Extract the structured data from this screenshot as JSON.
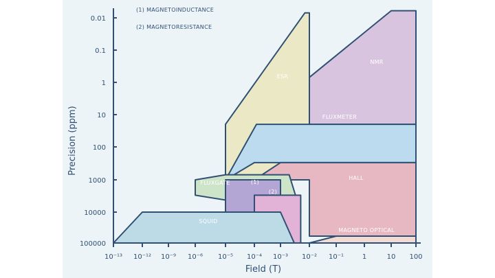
{
  "chart_data": {
    "type": "area",
    "title": "",
    "xlabel": "Field (T)",
    "ylabel": "Precision (ppm)",
    "x_scale": "log",
    "y_scale": "log-inverted",
    "x_ticks": [
      "10⁻¹³",
      "10⁻¹²",
      "10⁻⁹",
      "10⁻⁶",
      "10⁻⁵",
      "10⁻⁴",
      "10⁻³",
      "10⁻²",
      "10⁻¹",
      "1",
      "10",
      "100"
    ],
    "y_ticks": [
      "0.01",
      "0.1",
      "1",
      "10",
      "100",
      "1000",
      "10000",
      "100000"
    ],
    "notes": [
      "(1) MAGNETOINDUCTANCE",
      "(2) MAGNETORESISTANCE"
    ],
    "regions": [
      {
        "name": "ESR",
        "color": "#ebe8c6",
        "polygon": [
          [
            1e-05,
            20
          ],
          [
            1e-05,
            200
          ],
          [
            1e-05,
            1000
          ],
          [
            0.003,
            1000
          ],
          [
            0.01,
            1000
          ],
          [
            0.01,
            0.007
          ],
          [
            0.007,
            0.007
          ],
          [
            1e-05,
            20
          ]
        ]
      },
      {
        "name": "NMR",
        "color": "#d9c4e0",
        "polygon": [
          [
            0.01,
            0.7
          ],
          [
            0.01,
            20
          ],
          [
            100,
            20
          ],
          [
            100,
            0.006
          ],
          [
            10,
            0.006
          ],
          [
            0.01,
            0.7
          ]
        ]
      },
      {
        "name": "FLUXMETER",
        "color": "#bcdbee",
        "polygon": [
          [
            1e-05,
            1000
          ],
          [
            0.00012,
            20
          ],
          [
            100,
            20
          ],
          [
            100,
            300
          ],
          [
            0.0001,
            300
          ],
          [
            1e-05,
            1000
          ]
        ]
      },
      {
        "name": "HALL",
        "color": "#e7b8c2",
        "polygon": [
          [
            0.0001,
            1000
          ],
          [
            0.001,
            300
          ],
          [
            100,
            300
          ],
          [
            100,
            60000
          ],
          [
            0.01,
            60000
          ],
          [
            0.01,
            1000
          ],
          [
            0.0001,
            1000
          ]
        ]
      },
      {
        "name": "FLUXGATE",
        "color": "#cde4c8",
        "polygon": [
          [
            1e-06,
            3000
          ],
          [
            1e-06,
            1000
          ],
          [
            1e-05,
            700
          ],
          [
            0.002,
            700
          ],
          [
            0.005,
            10000
          ],
          [
            1e-06,
            3000
          ]
        ]
      },
      {
        "name": "(1)",
        "color": "#b3a5d4",
        "polygon": [
          [
            1e-05,
            1000
          ],
          [
            0.0001,
            1000
          ],
          [
            0.001,
            1000
          ],
          [
            0.001,
            3000
          ],
          [
            0.003,
            20000
          ],
          [
            1e-05,
            10000
          ],
          [
            1e-05,
            1000
          ]
        ]
      },
      {
        "name": "(2)",
        "color": "#e2b3d6",
        "polygon": [
          [
            0.0001,
            3000
          ],
          [
            0.005,
            3000
          ],
          [
            0.005,
            100000
          ],
          [
            0.003,
            100000
          ],
          [
            0.0001,
            10000
          ],
          [
            0.0001,
            3000
          ]
        ]
      },
      {
        "name": "SQUID",
        "color": "#bcdbe7",
        "polygon": [
          [
            1e-13,
            100000
          ],
          [
            1e-12,
            10000
          ],
          [
            0.001,
            10000
          ],
          [
            0.003,
            100000
          ],
          [
            1e-13,
            100000
          ]
        ]
      },
      {
        "name": "MAGNETO OPTICAL",
        "color": "#f1dbd3",
        "polygon": [
          [
            0.01,
            100000
          ],
          [
            0.1,
            60000
          ],
          [
            100,
            60000
          ],
          [
            100,
            100000
          ],
          [
            0.01,
            100000
          ]
        ]
      }
    ]
  },
  "colors": {
    "axis": "#2f4f73",
    "outline": "#2f4f73",
    "panel": "#edf4f8"
  }
}
